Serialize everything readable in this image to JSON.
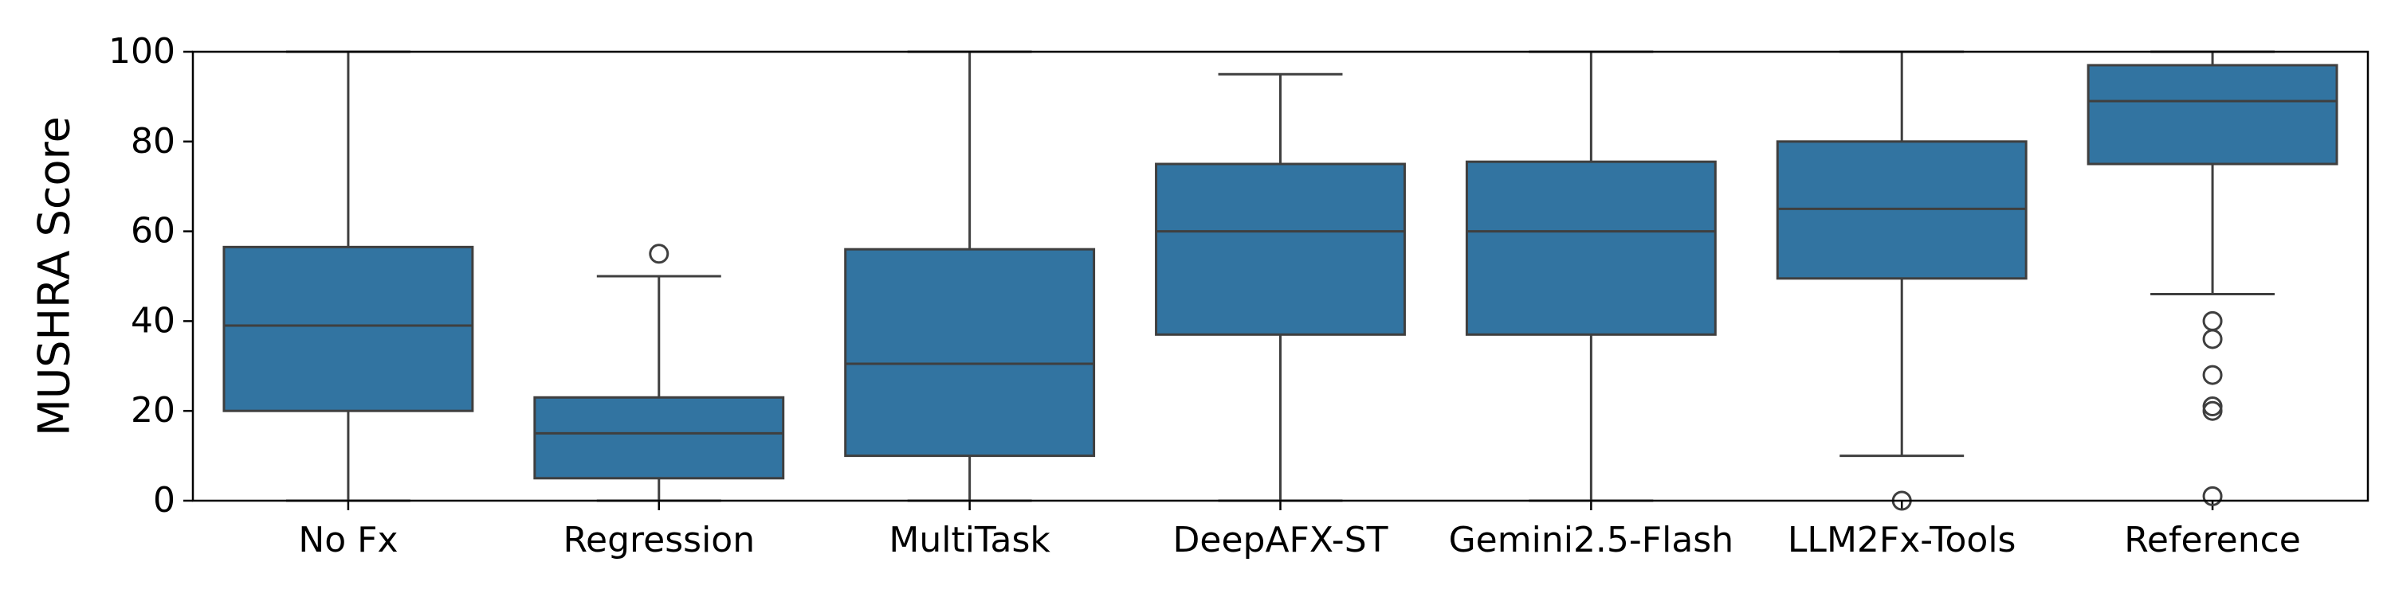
{
  "chart_data": {
    "type": "box",
    "ylabel": "MUSHRA Score",
    "color": "#3274a1",
    "categories": [
      "No Fx",
      "Regression",
      "MultiTask",
      "DeepAFX-ST",
      "Gemini2.5-Flash",
      "LLM2Fx-Tools",
      "Reference"
    ],
    "boxes": [
      {
        "whislo": 0,
        "q1": 20,
        "med": 39,
        "q3": 56.5,
        "whishi": 100,
        "fliers": []
      },
      {
        "whislo": 0,
        "q1": 5,
        "med": 15,
        "q3": 23,
        "whishi": 50,
        "fliers": [
          55
        ]
      },
      {
        "whislo": 0,
        "q1": 10,
        "med": 30.5,
        "q3": 56,
        "whishi": 100,
        "fliers": []
      },
      {
        "whislo": 0,
        "q1": 37,
        "med": 60,
        "q3": 75,
        "whishi": 95,
        "fliers": []
      },
      {
        "whislo": 0,
        "q1": 37,
        "med": 60,
        "q3": 75.5,
        "whishi": 100,
        "fliers": []
      },
      {
        "whislo": 10,
        "q1": 49.5,
        "med": 65,
        "q3": 80,
        "whishi": 100,
        "fliers": [
          0
        ]
      },
      {
        "whislo": 46,
        "q1": 75,
        "med": 89,
        "q3": 97,
        "whishi": 100,
        "fliers": [
          40,
          36,
          28,
          21,
          20,
          1
        ]
      }
    ],
    "ylim": [
      0,
      100
    ],
    "yticks": [
      0,
      20,
      40,
      60,
      80,
      100
    ]
  }
}
